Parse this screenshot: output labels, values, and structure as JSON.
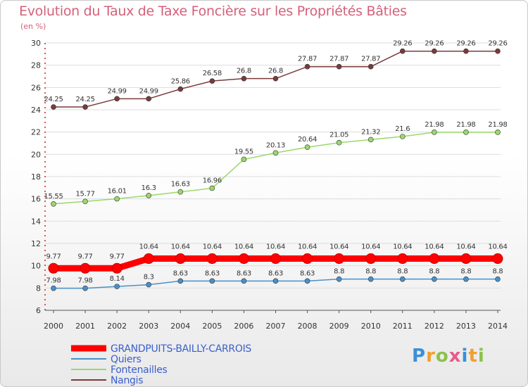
{
  "title": "Evolution du Taux de Taxe Foncière sur les Propriétés Bâties",
  "unit_label": "(en %)",
  "logo_text": "Proxiti",
  "colors": {
    "title": "#d4607a",
    "axis_text": "#333333",
    "grid": "#dddddd"
  },
  "chart_data": {
    "type": "line",
    "x": [
      "2000",
      "2001",
      "2002",
      "2003",
      "2004",
      "2005",
      "2006",
      "2007",
      "2008",
      "2009",
      "2010",
      "2011",
      "2012",
      "2013",
      "2014"
    ],
    "ylim": [
      6,
      30
    ],
    "yticks": [
      6,
      8,
      10,
      12,
      14,
      16,
      18,
      20,
      22,
      24,
      26,
      28,
      30
    ],
    "grid": true,
    "legend_position": "bottom-left",
    "series": [
      {
        "name": "Nangis",
        "color": "#7a3b3b",
        "values": [
          24.25,
          24.25,
          24.99,
          24.99,
          25.86,
          26.58,
          26.8,
          26.8,
          27.87,
          27.87,
          27.87,
          29.26,
          29.26,
          29.26,
          29.26
        ],
        "labels": [
          "24.25",
          "24.25",
          "24.99",
          "24.99",
          "25.86",
          "26.58",
          "26.8",
          "26.8",
          "27.87",
          "27.87",
          "27.87",
          "29.26",
          "29.26",
          "29.26",
          "29.26"
        ]
      },
      {
        "name": "Fontenailles",
        "color": "#9ad86a",
        "values": [
          15.55,
          15.77,
          16.01,
          16.3,
          16.63,
          16.96,
          19.55,
          20.13,
          20.64,
          21.05,
          21.32,
          21.6,
          21.98,
          21.98,
          21.98
        ],
        "labels": [
          "15.55",
          "15.77",
          "16.01",
          "16.3",
          "16.63",
          "16.96",
          "19.55",
          "20.13",
          "20.64",
          "21.05",
          "21.32",
          "21.6",
          "21.98",
          "21.98",
          "21.98"
        ]
      },
      {
        "name": "GRANDPUITS-BAILLY-CARROIS",
        "color": "#ff0000",
        "values": [
          9.77,
          9.77,
          9.77,
          10.64,
          10.64,
          10.64,
          10.64,
          10.64,
          10.64,
          10.64,
          10.64,
          10.64,
          10.64,
          10.64,
          10.64
        ],
        "labels": [
          "9.77",
          "9.77",
          "9.77",
          "10.64",
          "10.64",
          "10.64",
          "10.64",
          "10.64",
          "10.64",
          "10.64",
          "10.64",
          "10.64",
          "10.64",
          "10.64",
          "10.64"
        ]
      },
      {
        "name": "Quiers",
        "color": "#4a90c8",
        "values": [
          7.98,
          7.98,
          8.14,
          8.3,
          8.63,
          8.63,
          8.63,
          8.63,
          8.63,
          8.8,
          8.8,
          8.8,
          8.8,
          8.8,
          8.8
        ],
        "labels": [
          "7.98",
          "7.98",
          "8.14",
          "8.3",
          "8.63",
          "8.63",
          "8.63",
          "8.63",
          "8.63",
          "8.8",
          "8.8",
          "8.8",
          "8.8",
          "8.8",
          "8.8"
        ]
      }
    ],
    "legend": [
      "GRANDPUITS-BAILLY-CARROIS",
      "Quiers",
      "Fontenailles",
      "Nangis"
    ]
  }
}
